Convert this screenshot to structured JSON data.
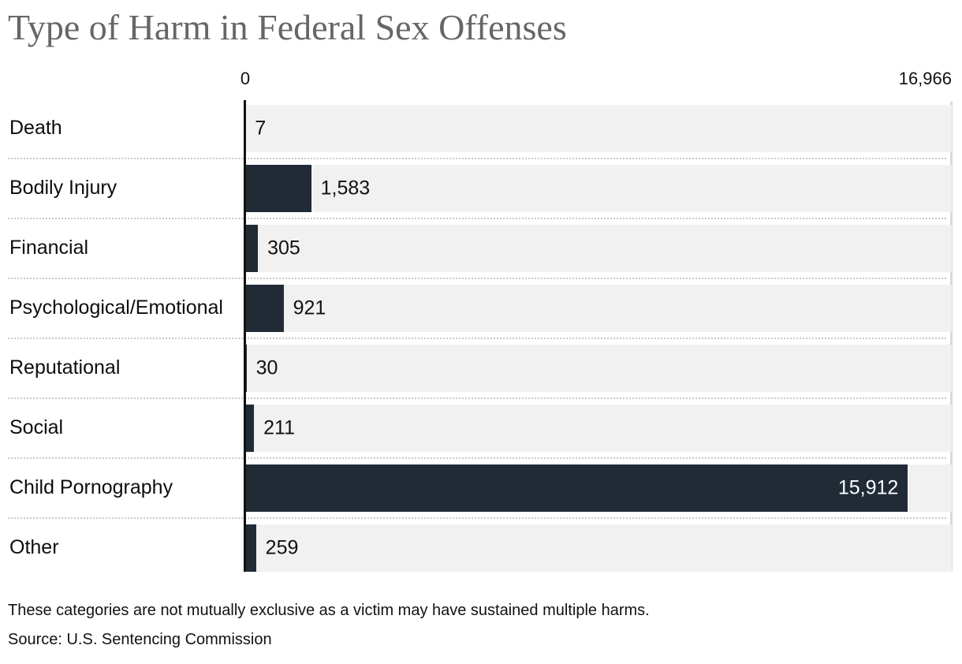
{
  "chart_data": {
    "type": "bar",
    "orientation": "horizontal",
    "title": "Type of Harm in Federal Sex Offenses",
    "x_axis": {
      "min": 0,
      "max": 16966,
      "min_label": "0",
      "max_label": "16,966"
    },
    "categories": [
      "Death",
      "Bodily Injury",
      "Financial",
      "Psychological/Emotional",
      "Reputational",
      "Social",
      "Child Pornography",
      "Other"
    ],
    "values": [
      7,
      1583,
      305,
      921,
      30,
      211,
      15912,
      259
    ],
    "value_labels": [
      "7",
      "1,583",
      "305",
      "921",
      "30",
      "211",
      "15,912",
      "259"
    ],
    "notes": "These categories are not mutually exclusive as a victim may have sustained multiple harms.",
    "source": "Source: U.S. Sentencing Commission",
    "colors": {
      "bar": "#212b36",
      "track": "#f1f1f1",
      "title": "#666666",
      "text": "#111111",
      "separator": "#c9c9c9",
      "max_gridline": "#d9d9d9",
      "axis_line": "#111111",
      "inside_value_label": "#ffffff"
    },
    "layout": {
      "legend": false,
      "grid": "max-gridline-only",
      "value_labels": "outside-bar-except-largest"
    }
  }
}
